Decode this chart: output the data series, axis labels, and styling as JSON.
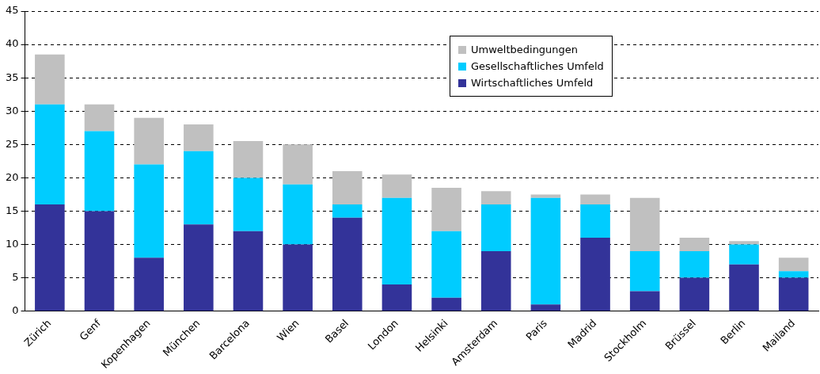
{
  "chart_data": {
    "type": "bar",
    "stacked": true,
    "categories": [
      "Zürich",
      "Genf",
      "Kopenhagen",
      "München",
      "Barcelona",
      "Wien",
      "Basel",
      "London",
      "Helsinki",
      "Amsterdam",
      "Paris",
      "Madrid",
      "Stockholm",
      "Brüssel",
      "Berlin",
      "Mailand"
    ],
    "series": [
      {
        "name": "Wirtschaftliches Umfeld",
        "color": "#333399",
        "values": [
          16,
          15,
          8,
          13,
          12,
          10,
          14,
          4,
          2,
          9,
          1,
          11,
          3,
          5,
          7,
          5
        ]
      },
      {
        "name": "Gesellschaftliches Umfeld",
        "color": "#00ccff",
        "values": [
          15,
          12,
          14,
          11,
          8,
          9,
          2,
          13,
          10,
          7,
          16,
          5,
          6,
          4,
          3,
          1
        ]
      },
      {
        "name": "Umweltbedingungen",
        "color": "#c0c0c0",
        "values": [
          7.5,
          4,
          7,
          4,
          5.5,
          6,
          5,
          3.5,
          6.5,
          2,
          0.5,
          1.5,
          8,
          2,
          0.5,
          2
        ]
      }
    ],
    "ylim": [
      0,
      45
    ],
    "yticks": [
      0,
      5,
      10,
      15,
      20,
      25,
      30,
      35,
      40,
      45
    ],
    "grid": "y",
    "legend": "top right"
  }
}
